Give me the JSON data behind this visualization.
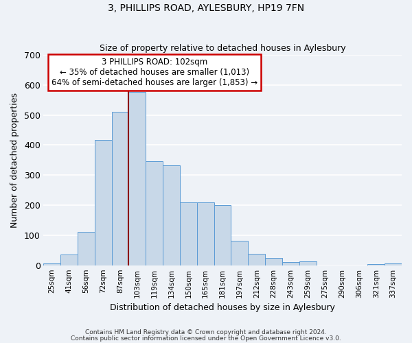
{
  "title": "3, PHILLIPS ROAD, AYLESBURY, HP19 7FN",
  "subtitle": "Size of property relative to detached houses in Aylesbury",
  "xlabel": "Distribution of detached houses by size in Aylesbury",
  "ylabel": "Number of detached properties",
  "bin_labels": [
    "25sqm",
    "41sqm",
    "56sqm",
    "72sqm",
    "87sqm",
    "103sqm",
    "119sqm",
    "134sqm",
    "150sqm",
    "165sqm",
    "181sqm",
    "197sqm",
    "212sqm",
    "228sqm",
    "243sqm",
    "259sqm",
    "275sqm",
    "290sqm",
    "306sqm",
    "321sqm",
    "337sqm"
  ],
  "bar_values": [
    8,
    37,
    113,
    416,
    510,
    577,
    347,
    333,
    211,
    210,
    202,
    82,
    40,
    27,
    13,
    15,
    0,
    0,
    0,
    5,
    8
  ],
  "bar_color": "#c8d8e8",
  "bar_edge_color": "#5b9bd5",
  "vline_color": "#8b0000",
  "ylim": [
    0,
    700
  ],
  "yticks": [
    0,
    100,
    200,
    300,
    400,
    500,
    600,
    700
  ],
  "annotation_title": "3 PHILLIPS ROAD: 102sqm",
  "annotation_line1": "← 35% of detached houses are smaller (1,013)",
  "annotation_line2": "64% of semi-detached houses are larger (1,853) →",
  "annotation_box_color": "#ffffff",
  "annotation_box_edgecolor": "#cc0000",
  "footer_line1": "Contains HM Land Registry data © Crown copyright and database right 2024.",
  "footer_line2": "Contains public sector information licensed under the Open Government Licence v3.0.",
  "background_color": "#eef2f7",
  "grid_color": "#ffffff"
}
